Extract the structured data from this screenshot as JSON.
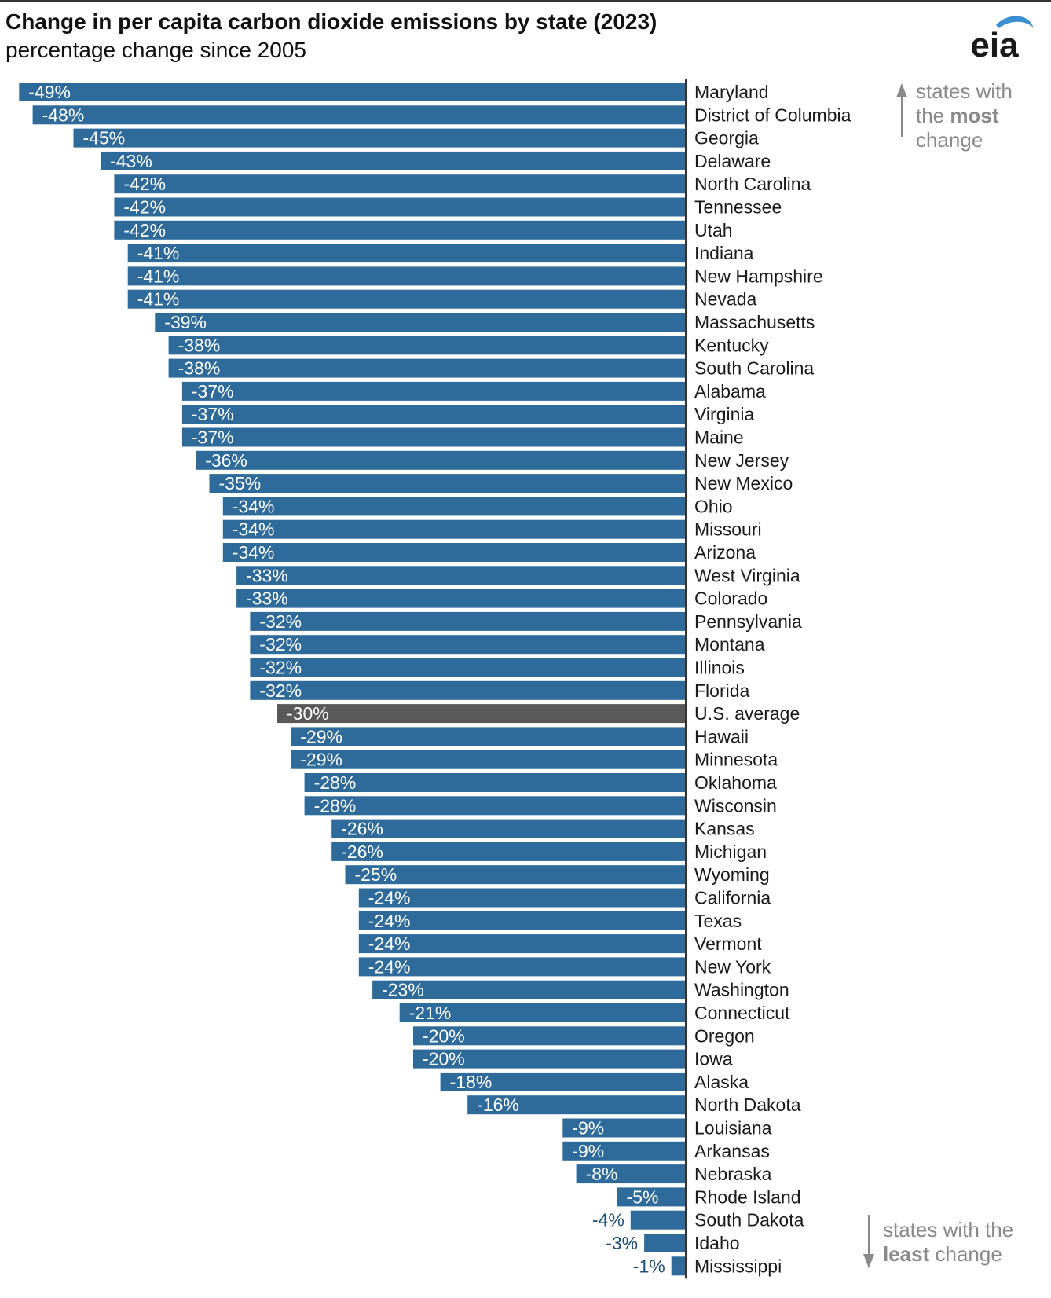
{
  "header": {
    "title": "Change in per capita carbon dioxide emissions by state (2023)",
    "subtitle": "percentage change since 2005"
  },
  "logo": {
    "text": "eia",
    "color": "#1a1a1a",
    "swoosh_color": "#3b8ed0"
  },
  "notes": {
    "most": {
      "line1": "states with",
      "line2_pre": "the ",
      "line2_bold": "most",
      "line3": "change"
    },
    "least": {
      "line1": "states with the",
      "line2_bold": "least",
      "line2_post": " change"
    }
  },
  "colors": {
    "state_bar": "#2e6a9a",
    "average_bar": "#595959",
    "inside_label": "#ffffff",
    "outside_label": "#1f4e79",
    "category_label": "#1a1a1a",
    "note": "#8a8a8a"
  },
  "chart_data": {
    "type": "bar",
    "orientation": "horizontal",
    "xlim": [
      -50,
      0
    ],
    "grid": false,
    "legend": "none",
    "bars": [
      {
        "label": "Maryland",
        "value": -49
      },
      {
        "label": "District of Columbia",
        "value": -48
      },
      {
        "label": "Georgia",
        "value": -45
      },
      {
        "label": "Delaware",
        "value": -43
      },
      {
        "label": "North Carolina",
        "value": -42
      },
      {
        "label": "Tennessee",
        "value": -42
      },
      {
        "label": "Utah",
        "value": -42
      },
      {
        "label": "Indiana",
        "value": -41
      },
      {
        "label": "New Hampshire",
        "value": -41
      },
      {
        "label": "Nevada",
        "value": -41
      },
      {
        "label": "Massachusetts",
        "value": -39
      },
      {
        "label": "Kentucky",
        "value": -38
      },
      {
        "label": "South Carolina",
        "value": -38
      },
      {
        "label": "Alabama",
        "value": -37
      },
      {
        "label": "Virginia",
        "value": -37
      },
      {
        "label": "Maine",
        "value": -37
      },
      {
        "label": "New Jersey",
        "value": -36
      },
      {
        "label": "New Mexico",
        "value": -35
      },
      {
        "label": "Ohio",
        "value": -34
      },
      {
        "label": "Missouri",
        "value": -34
      },
      {
        "label": "Arizona",
        "value": -34
      },
      {
        "label": "West Virginia",
        "value": -33
      },
      {
        "label": "Colorado",
        "value": -33
      },
      {
        "label": "Pennsylvania",
        "value": -32
      },
      {
        "label": "Montana",
        "value": -32
      },
      {
        "label": "Illinois",
        "value": -32
      },
      {
        "label": "Florida",
        "value": -32
      },
      {
        "label": "U.S. average",
        "value": -30,
        "highlight": true
      },
      {
        "label": "Hawaii",
        "value": -29
      },
      {
        "label": "Minnesota",
        "value": -29
      },
      {
        "label": "Oklahoma",
        "value": -28
      },
      {
        "label": "Wisconsin",
        "value": -28
      },
      {
        "label": "Kansas",
        "value": -26
      },
      {
        "label": "Michigan",
        "value": -26
      },
      {
        "label": "Wyoming",
        "value": -25
      },
      {
        "label": "California",
        "value": -24
      },
      {
        "label": "Texas",
        "value": -24
      },
      {
        "label": "Vermont",
        "value": -24
      },
      {
        "label": "New York",
        "value": -24
      },
      {
        "label": "Washington",
        "value": -23
      },
      {
        "label": "Connecticut",
        "value": -21
      },
      {
        "label": "Oregon",
        "value": -20
      },
      {
        "label": "Iowa",
        "value": -20
      },
      {
        "label": "Alaska",
        "value": -18
      },
      {
        "label": "North Dakota",
        "value": -16
      },
      {
        "label": "Louisiana",
        "value": -9
      },
      {
        "label": "Arkansas",
        "value": -9
      },
      {
        "label": "Nebraska",
        "value": -8
      },
      {
        "label": "Rhode Island",
        "value": -5
      },
      {
        "label": "South Dakota",
        "value": -4
      },
      {
        "label": "Idaho",
        "value": -3
      },
      {
        "label": "Mississippi",
        "value": -1
      }
    ]
  }
}
